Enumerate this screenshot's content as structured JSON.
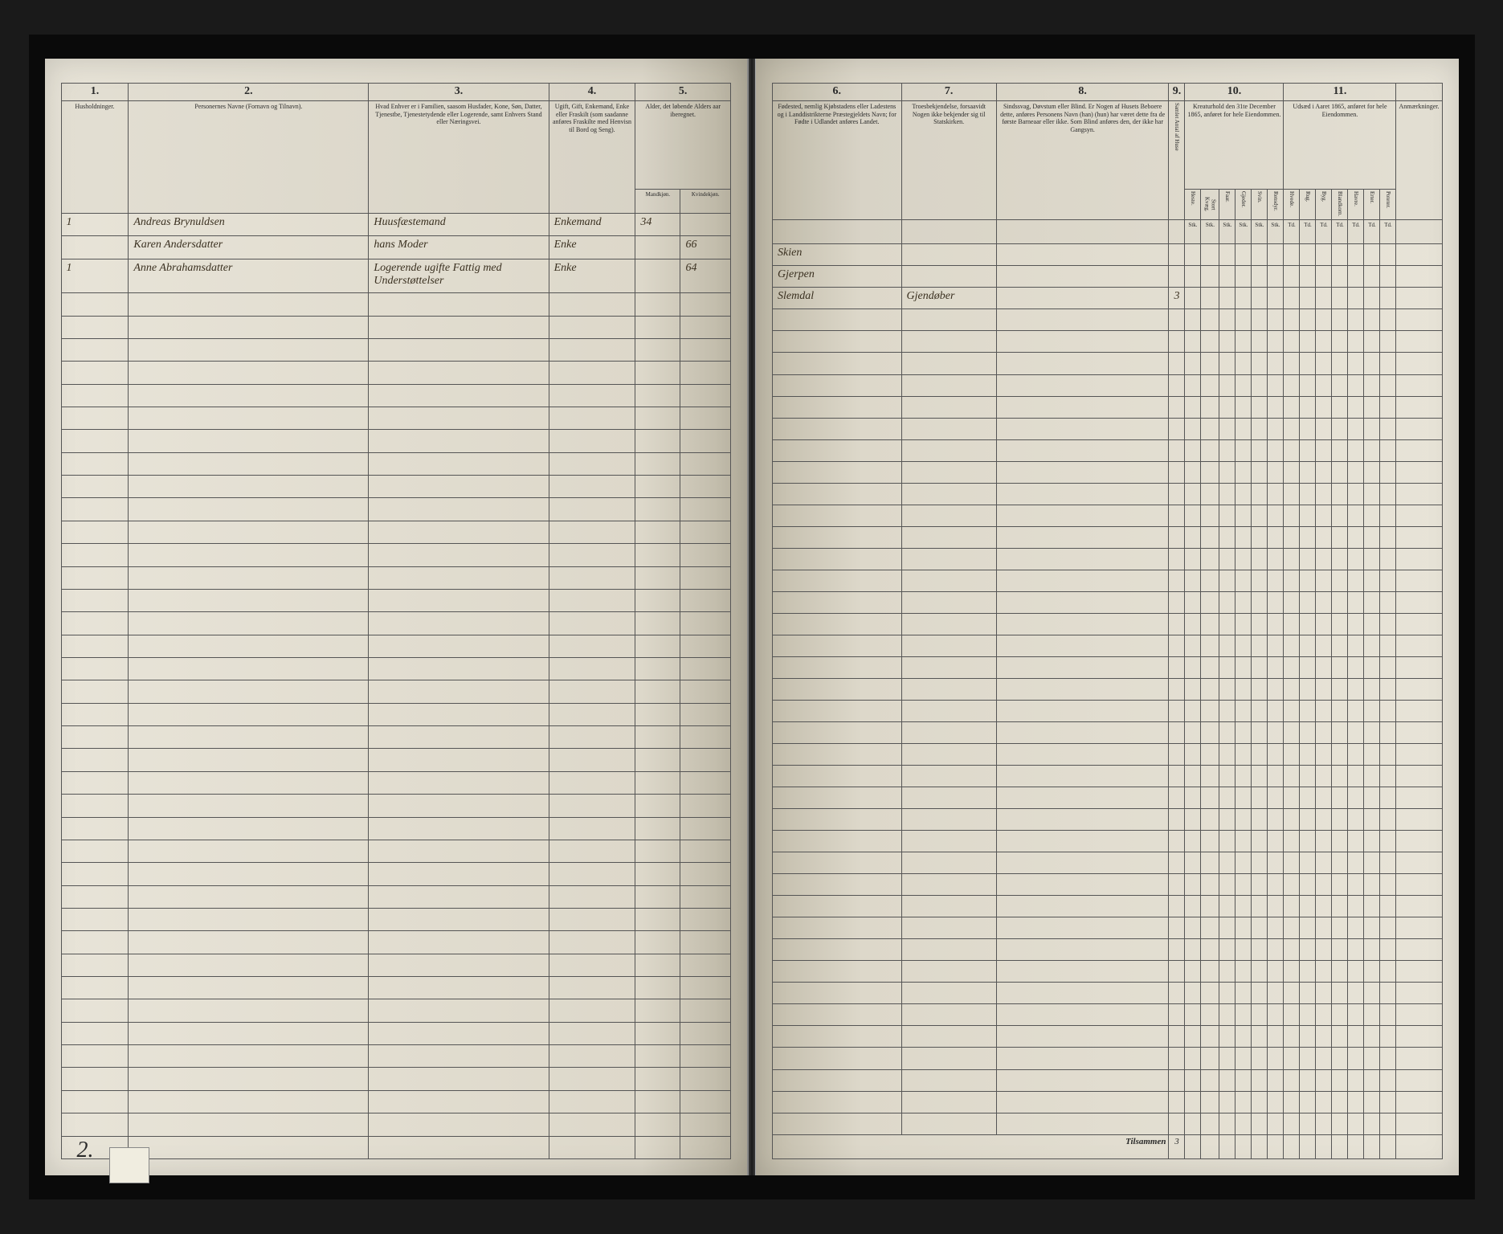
{
  "left_page": {
    "col_nums": [
      "1.",
      "2.",
      "3.",
      "4.",
      "5."
    ],
    "headers": {
      "col1": "Husholdninger.",
      "col2": "Personernes Navne (Fornavn og Tilnavn).",
      "col3": "Hvad Enhver er i Familien, saasom Husfader, Kone, Søn, Datter, Tjenestbe, Tjenestetydende eller Logerende, samt Enhvers Stand eller Næringsvei.",
      "col4": "Ugift, Gift, Enkemand, Enke eller Fraskilt (som saadanne anføres Fraskilte med Henvisn til Bord og Seng).",
      "col5": "Alder, det løbende Alders aar iberegnet.",
      "col5a": "Mandkjøn.",
      "col5b": "Kvindekjøn."
    },
    "rows": [
      {
        "num": "1",
        "name": "Andreas Brynuldsen",
        "role": "Huusfæstemand",
        "status": "Enkemand",
        "age_m": "34",
        "age_f": ""
      },
      {
        "num": "",
        "name": "Karen Andersdatter",
        "role": "hans Moder",
        "status": "Enke",
        "age_m": "",
        "age_f": "66"
      },
      {
        "num": "1",
        "name": "Anne Abrahamsdatter",
        "role": "Logerende ugifte Fattig med Understøttelser",
        "status": "Enke",
        "age_m": "",
        "age_f": "64"
      }
    ],
    "page_number": "2.",
    "empty_row_count": 38
  },
  "right_page": {
    "col_nums": [
      "6.",
      "7.",
      "8.",
      "9.",
      "10.",
      "11.",
      ""
    ],
    "headers": {
      "col6": "Fødested, nemlig Kjøbstadens eller Ladestens og i Landdistrikterne Præstegjeldets Navn; for Fødte i Udlandet anføres Landet.",
      "col7": "Troesbekjendelse, forsaavidt Nogen ikke bekjender sig til Statskirken.",
      "col8": "Sindssvag, Døvstum eller Blind. Er Nogen af Husets Beboere dette, anføres Personens Navn (han) (hun) har været dette fra de første Barneaar eller ikke. Som Blind anføres den, der ikke har Gangsyn.",
      "col9": "",
      "col10": "Kreaturhold den 31te December 1865, anføret for hele Eiendommen.",
      "col10_subs": [
        "Heste.",
        "Stort Kvæg.",
        "Faar.",
        "Gjeder.",
        "Svin.",
        "Rensdyr."
      ],
      "col11": "Udsæd i Aaret 1865, anføret for hele Eiendommen.",
      "col11_subs": [
        "Hvede.",
        "Rug.",
        "Byg.",
        "Blandkorn.",
        "Havre.",
        "Erter.",
        "Poteter."
      ],
      "col12": "Anmærkninger."
    },
    "sub_unit": "Stk.",
    "sub_unit2": "Td.",
    "rows": [
      {
        "place": "Skien",
        "relig": "",
        "cond": "",
        "c9": "",
        "livestock": [
          "",
          "",
          "",
          "",
          "",
          ""
        ],
        "seed": [
          "",
          "",
          "",
          "",
          "",
          "",
          ""
        ]
      },
      {
        "place": "Gjerpen",
        "relig": "",
        "cond": "",
        "c9": "",
        "livestock": [
          "",
          "",
          "",
          "",
          "",
          ""
        ],
        "seed": [
          "",
          "",
          "",
          "",
          "",
          "",
          ""
        ]
      },
      {
        "place": "Slemdal",
        "relig": "Gjendøber",
        "cond": "",
        "c9": "3",
        "livestock": [
          "",
          "",
          "",
          "",
          "",
          ""
        ],
        "seed": [
          "",
          "",
          "",
          "",
          "",
          "",
          ""
        ]
      }
    ],
    "footer_label": "Tilsammen",
    "footer_total": "3",
    "empty_row_count": 38
  },
  "colors": {
    "paper": "#e8e4d8",
    "ink": "#2a2a2a",
    "handwriting": "#3a3020",
    "border": "#555",
    "background": "#1a1a1a"
  }
}
